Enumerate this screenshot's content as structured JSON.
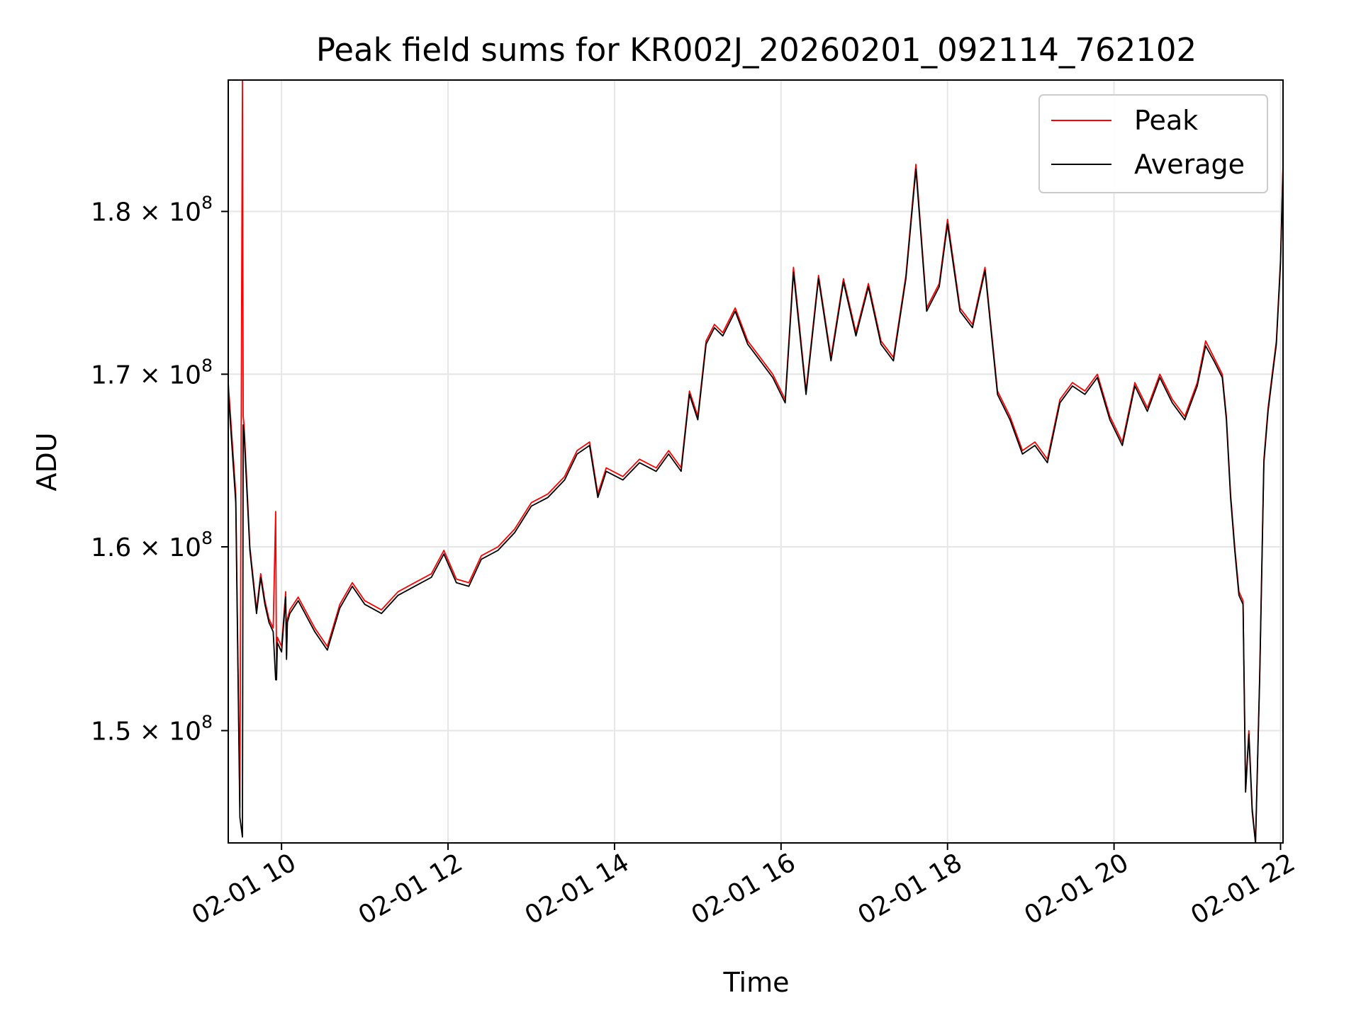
{
  "chart_data": {
    "type": "line",
    "title": "Peak field sums for KR002J_20260201_092114_762102",
    "xlabel": "Time",
    "ylabel": "ADU",
    "yscale": "log",
    "grid": true,
    "legend_position": "top-right",
    "xlim": [
      9.36,
      22.03
    ],
    "ylim": [
      144200000,
      188500000
    ],
    "x_ticks": [
      {
        "value": 10,
        "label": "02-01 10"
      },
      {
        "value": 12,
        "label": "02-01 12"
      },
      {
        "value": 14,
        "label": "02-01 14"
      },
      {
        "value": 16,
        "label": "02-01 16"
      },
      {
        "value": 18,
        "label": "02-01 18"
      },
      {
        "value": 20,
        "label": "02-01 20"
      },
      {
        "value": 22,
        "label": "02-01 22"
      }
    ],
    "y_ticks": [
      {
        "value": 150000000,
        "mantissa": "1.5",
        "base": "10",
        "exponent": "8"
      },
      {
        "value": 160000000,
        "mantissa": "1.6",
        "base": "10",
        "exponent": "8"
      },
      {
        "value": 170000000,
        "mantissa": "1.7",
        "base": "10",
        "exponent": "8"
      },
      {
        "value": 180000000,
        "mantissa": "1.8",
        "base": "10",
        "exponent": "8"
      }
    ],
    "series": [
      {
        "name": "Peak",
        "color": "#ff0000",
        "x": [
          9.36,
          9.45,
          9.5,
          9.53,
          9.54,
          9.55,
          9.62,
          9.7,
          9.75,
          9.8,
          9.85,
          9.9,
          9.93,
          9.94,
          9.95,
          10.0,
          10.05,
          10.06,
          10.07,
          10.1,
          10.2,
          10.4,
          10.55,
          10.7,
          10.85,
          11.0,
          11.2,
          11.4,
          11.6,
          11.8,
          11.95,
          12.1,
          12.25,
          12.4,
          12.6,
          12.8,
          13.0,
          13.2,
          13.4,
          13.55,
          13.7,
          13.8,
          13.9,
          14.1,
          14.3,
          14.5,
          14.65,
          14.8,
          14.9,
          15.0,
          15.1,
          15.2,
          15.3,
          15.45,
          15.6,
          15.75,
          15.9,
          16.05,
          16.15,
          16.3,
          16.45,
          16.6,
          16.75,
          16.9,
          17.05,
          17.2,
          17.35,
          17.5,
          17.62,
          17.75,
          17.9,
          18.0,
          18.15,
          18.3,
          18.45,
          18.6,
          18.75,
          18.9,
          19.05,
          19.2,
          19.35,
          19.5,
          19.65,
          19.8,
          19.95,
          20.1,
          20.25,
          20.4,
          20.55,
          20.7,
          20.85,
          21.0,
          21.1,
          21.2,
          21.3,
          21.35,
          21.4,
          21.45,
          21.5,
          21.55,
          21.58,
          21.62,
          21.66,
          21.7,
          21.75,
          21.8,
          21.85,
          21.9,
          21.95,
          22.0,
          22.03
        ],
        "values": [
          169500000,
          163000000,
          146000000,
          188500000,
          167500000,
          167000000,
          160000000,
          156500000,
          158500000,
          157000000,
          156000000,
          155500000,
          162000000,
          153000000,
          155000000,
          154500000,
          157500000,
          154000000,
          156000000,
          156500000,
          157200000,
          155500000,
          154500000,
          156800000,
          158000000,
          157000000,
          156500000,
          157500000,
          158000000,
          158500000,
          159800000,
          158200000,
          158000000,
          159500000,
          160000000,
          161000000,
          162500000,
          163000000,
          164000000,
          165500000,
          166000000,
          163000000,
          164500000,
          164000000,
          165000000,
          164500000,
          165500000,
          164500000,
          169000000,
          167500000,
          172000000,
          173000000,
          172500000,
          174000000,
          172000000,
          171000000,
          170000000,
          168500000,
          176500000,
          169000000,
          176000000,
          171000000,
          175800000,
          172500000,
          175500000,
          172000000,
          171000000,
          176000000,
          183000000,
          174000000,
          175500000,
          179500000,
          174000000,
          173000000,
          176500000,
          169000000,
          167500000,
          165500000,
          166000000,
          165000000,
          168500000,
          169500000,
          169000000,
          170000000,
          167500000,
          166000000,
          169500000,
          168000000,
          170000000,
          168500000,
          167500000,
          169500000,
          172000000,
          171000000,
          170000000,
          167500000,
          163000000,
          160000000,
          157500000,
          157000000,
          147000000,
          150000000,
          146000000,
          144200000,
          153000000,
          165000000,
          168000000,
          170000000,
          172000000,
          177000000,
          183000000
        ]
      },
      {
        "name": "Average",
        "color": "#000000",
        "x": [
          9.36,
          9.45,
          9.5,
          9.53,
          9.54,
          9.55,
          9.62,
          9.7,
          9.75,
          9.8,
          9.85,
          9.9,
          9.93,
          9.94,
          9.95,
          10.0,
          10.05,
          10.06,
          10.07,
          10.1,
          10.2,
          10.4,
          10.55,
          10.7,
          10.85,
          11.0,
          11.2,
          11.4,
          11.6,
          11.8,
          11.95,
          12.1,
          12.25,
          12.4,
          12.6,
          12.8,
          13.0,
          13.2,
          13.4,
          13.55,
          13.7,
          13.8,
          13.9,
          14.1,
          14.3,
          14.5,
          14.65,
          14.8,
          14.9,
          15.0,
          15.1,
          15.2,
          15.3,
          15.45,
          15.6,
          15.75,
          15.9,
          16.05,
          16.15,
          16.3,
          16.45,
          16.6,
          16.75,
          16.9,
          17.05,
          17.2,
          17.35,
          17.5,
          17.62,
          17.75,
          17.9,
          18.0,
          18.15,
          18.3,
          18.45,
          18.6,
          18.75,
          18.9,
          19.05,
          19.2,
          19.35,
          19.5,
          19.65,
          19.8,
          19.95,
          20.1,
          20.25,
          20.4,
          20.55,
          20.7,
          20.85,
          21.0,
          21.1,
          21.2,
          21.3,
          21.35,
          21.4,
          21.45,
          21.5,
          21.55,
          21.58,
          21.62,
          21.66,
          21.7,
          21.75,
          21.8,
          21.85,
          21.9,
          21.95,
          22.0,
          22.03
        ],
        "values": [
          169000000,
          162500000,
          145500000,
          144500000,
          167000000,
          166500000,
          159800000,
          156300000,
          158300000,
          156800000,
          155800000,
          155300000,
          152700000,
          152700000,
          154700000,
          154200000,
          157200000,
          153800000,
          155800000,
          156300000,
          157000000,
          155300000,
          154300000,
          156600000,
          157800000,
          156800000,
          156300000,
          157300000,
          157800000,
          158300000,
          159600000,
          158000000,
          157800000,
          159300000,
          159800000,
          160800000,
          162300000,
          162800000,
          163800000,
          165300000,
          165800000,
          162800000,
          164300000,
          163800000,
          164800000,
          164300000,
          165300000,
          164300000,
          168800000,
          167300000,
          171800000,
          172800000,
          172300000,
          173800000,
          171800000,
          170800000,
          169800000,
          168300000,
          176200000,
          168800000,
          175800000,
          170800000,
          175600000,
          172300000,
          175300000,
          171800000,
          170800000,
          175800000,
          182700000,
          173800000,
          175300000,
          179200000,
          173800000,
          172800000,
          176300000,
          168800000,
          167300000,
          165300000,
          165800000,
          164800000,
          168300000,
          169300000,
          168800000,
          169800000,
          167300000,
          165800000,
          169300000,
          167800000,
          169800000,
          168300000,
          167300000,
          169300000,
          171700000,
          170800000,
          169800000,
          167300000,
          162800000,
          159800000,
          157300000,
          156800000,
          146800000,
          149800000,
          145800000,
          144200000,
          152800000,
          164800000,
          167800000,
          169800000,
          171800000,
          176800000,
          182800000
        ]
      }
    ]
  }
}
